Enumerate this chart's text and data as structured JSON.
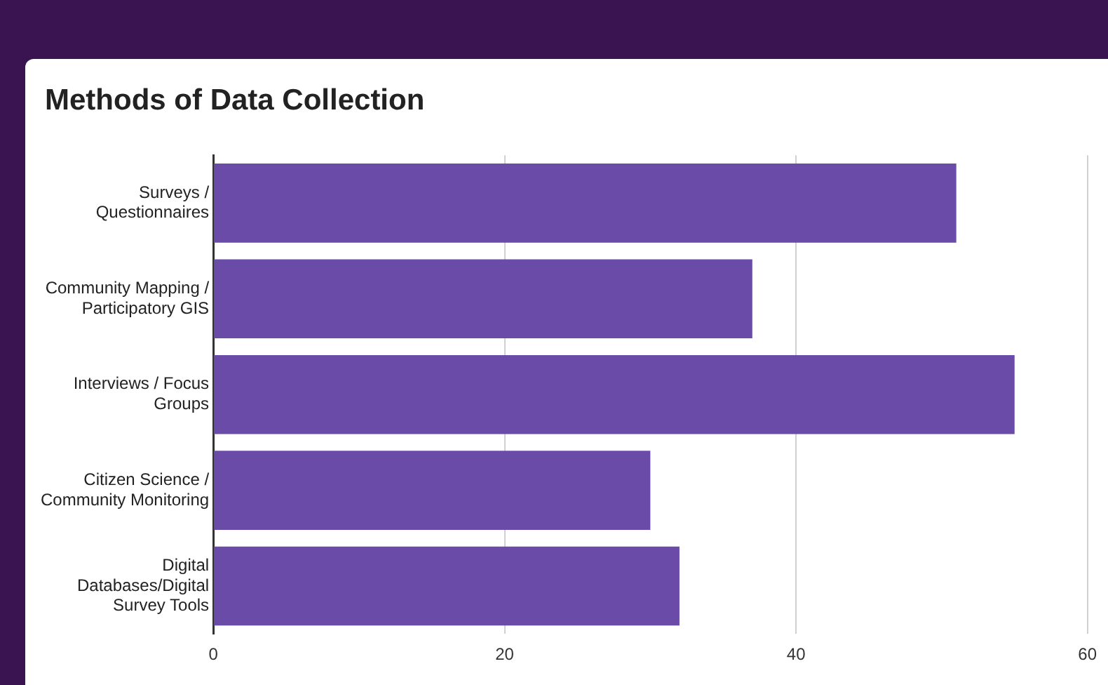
{
  "chart_data": {
    "type": "bar",
    "orientation": "horizontal",
    "title": "Methods of Data Collection",
    "categories": [
      "Surveys / Questionnaires",
      "Community Mapping / Participatory GIS",
      "Interviews / Focus Groups",
      "Citizen Science / Community Monitoring",
      "Digital Databases/Digital Survey Tools"
    ],
    "values": [
      51,
      37,
      55,
      30,
      32
    ],
    "color": "#6a4ca8",
    "xlim": [
      0,
      60
    ],
    "xticks": [
      0,
      20,
      40,
      60
    ],
    "grid": "x"
  }
}
